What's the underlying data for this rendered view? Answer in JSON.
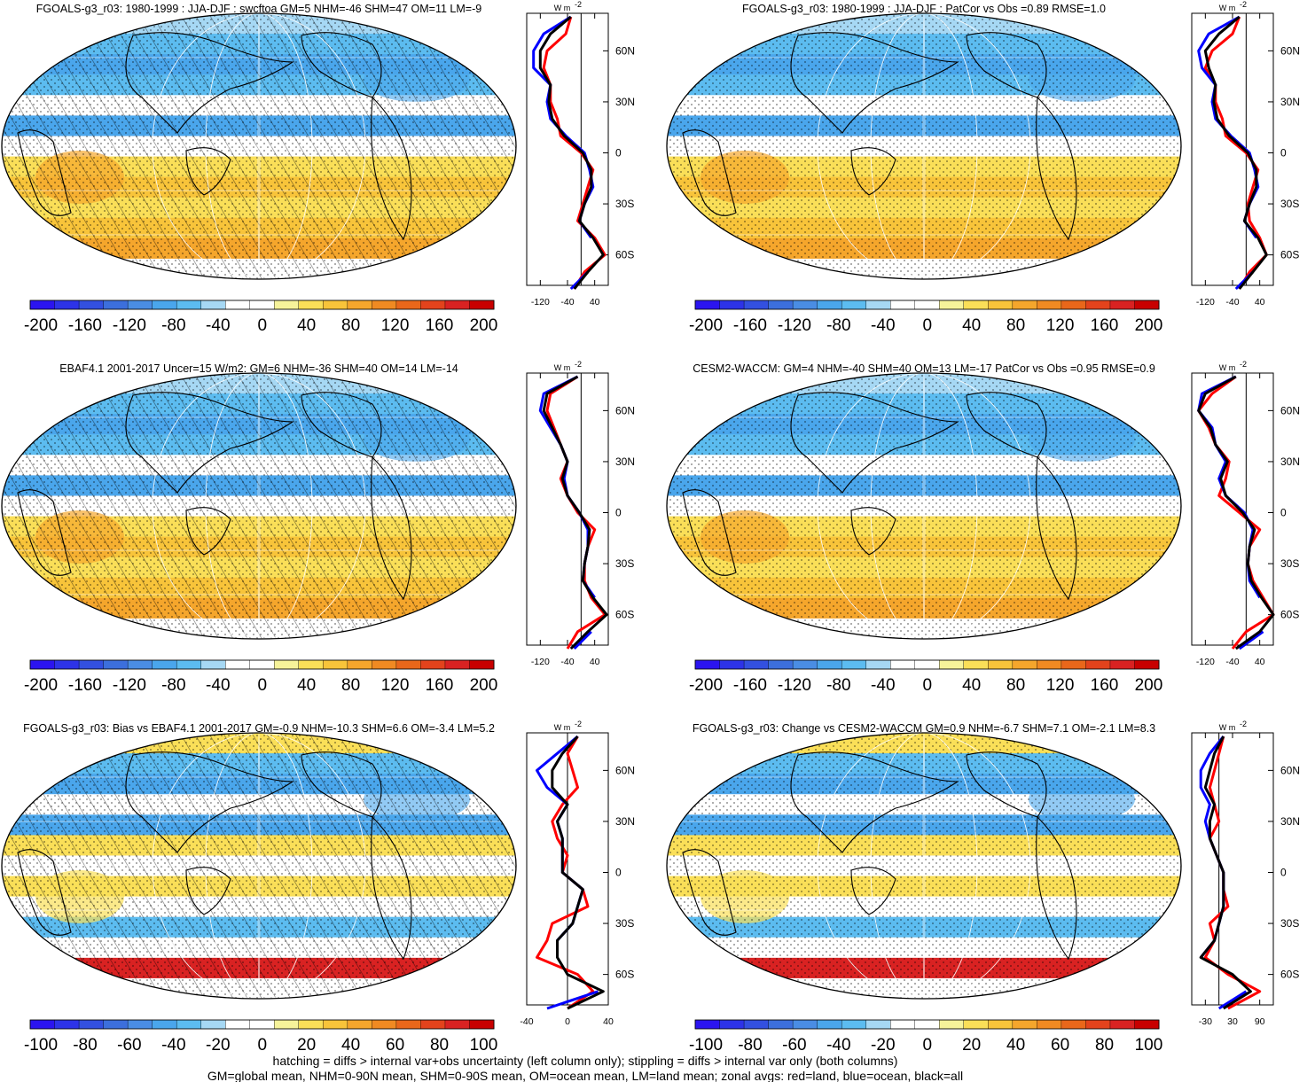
{
  "chart_data": [
    {
      "type": "map",
      "title": "FGOALS-g3_r03: 1980-1999 : JJA-DJF : swcftoa GM=5 NHM=-46 SHM=47 OM=11 LM=-9",
      "hatching": true,
      "colorbar_ticks": [
        "-200",
        "-160",
        "-120",
        "-80",
        "-40",
        "0",
        "40",
        "80",
        "120",
        "160",
        "200"
      ],
      "zonal": {
        "unit": "W m",
        "unit_exp": "-2",
        "xticks": [
          "-120",
          "-40",
          "40"
        ],
        "xmin": -160,
        "xmax": 80,
        "lat": [
          80,
          70,
          60,
          50,
          40,
          30,
          20,
          10,
          0,
          -10,
          -20,
          -30,
          -40,
          -50,
          -60,
          -70,
          -80
        ],
        "series": [
          {
            "name": "red",
            "color": "#ff0000",
            "values": [
              -30,
              -45,
              -100,
              -110,
              -90,
              -90,
              -70,
              -60,
              0,
              35,
              20,
              5,
              -10,
              40,
              70,
              10,
              -20
            ]
          },
          {
            "name": "blue",
            "color": "#0000ff",
            "values": [
              -30,
              -110,
              -140,
              -140,
              -90,
              -100,
              -90,
              -45,
              10,
              25,
              35,
              10,
              -5,
              30,
              null,
              20,
              -30
            ]
          },
          {
            "name": "black",
            "color": "#000000",
            "values": [
              -30,
              -90,
              -120,
              -120,
              -90,
              -95,
              -85,
              -50,
              5,
              30,
              30,
              10,
              -5,
              35,
              65,
              20,
              -20
            ]
          }
        ]
      }
    },
    {
      "type": "map",
      "title": "FGOALS-g3_r03: 1980-1999 : JJA-DJF : PatCor vs Obs =0.89 RMSE=1.0",
      "hatching": false,
      "colorbar_ticks": [
        "-200",
        "-160",
        "-120",
        "-80",
        "-40",
        "0",
        "40",
        "80",
        "120",
        "160",
        "200"
      ],
      "zonal": {
        "unit": "W m",
        "unit_exp": "-2",
        "xticks": [
          "-120",
          "-40",
          "40"
        ],
        "xmin": -160,
        "xmax": 80,
        "lat": [
          80,
          70,
          60,
          50,
          40,
          30,
          20,
          10,
          0,
          -10,
          -20,
          -30,
          -40,
          -50,
          -60,
          -70,
          -80
        ],
        "series": [
          {
            "name": "red",
            "color": "#ff0000",
            "values": [
              -20,
              -40,
              -100,
              -120,
              -90,
              -90,
              -70,
              -60,
              0,
              35,
              20,
              5,
              10,
              40,
              60,
              10,
              -20
            ]
          },
          {
            "name": "blue",
            "color": "#0000ff",
            "values": [
              -20,
              -110,
              -140,
              -130,
              -90,
              -100,
              -90,
              -45,
              10,
              25,
              35,
              10,
              -5,
              30,
              null,
              20,
              -30
            ]
          },
          {
            "name": "black",
            "color": "#000000",
            "values": [
              -20,
              -80,
              -120,
              -110,
              -90,
              -95,
              -85,
              -50,
              5,
              30,
              30,
              10,
              -5,
              35,
              60,
              20,
              -20
            ]
          }
        ]
      }
    },
    {
      "type": "map",
      "title": "EBAF4.1 2001-2017 Uncer=15 W/m2: GM=6 NHM=-36 SHM=40 OM=14 LM=-14",
      "hatching": true,
      "colorbar_ticks": [
        "-200",
        "-160",
        "-120",
        "-80",
        "-40",
        "0",
        "40",
        "80",
        "120",
        "160",
        "200"
      ],
      "zonal": {
        "unit": "W m",
        "unit_exp": "-2",
        "xticks": [
          "-120",
          "-40",
          "40"
        ],
        "xmin": -160,
        "xmax": 80,
        "lat": [
          80,
          70,
          60,
          50,
          40,
          30,
          20,
          10,
          0,
          -10,
          -20,
          -30,
          -40,
          -50,
          -60,
          -70,
          -80
        ],
        "series": [
          {
            "name": "red",
            "color": "#ff0000",
            "values": [
              -10,
              -90,
              -100,
              -80,
              -60,
              -40,
              -60,
              -40,
              -10,
              40,
              20,
              10,
              10,
              30,
              70,
              -10,
              -40
            ]
          },
          {
            "name": "blue",
            "color": "#0000ff",
            "values": [
              -10,
              -110,
              -120,
              -90,
              -60,
              -40,
              -50,
              -40,
              -5,
              20,
              20,
              10,
              5,
              40,
              null,
              30,
              -20
            ]
          },
          {
            "name": "black",
            "color": "#000000",
            "values": [
              -10,
              -100,
              -110,
              -85,
              -60,
              -40,
              -55,
              -40,
              -5,
              25,
              20,
              10,
              5,
              35,
              75,
              20,
              -30
            ]
          }
        ]
      }
    },
    {
      "type": "map",
      "title": "CESM2-WACCM: GM=4 NHM=-40 SHM=40 OM=13 LM=-17 PatCor vs Obs =0.95 RMSE=0.9",
      "hatching": false,
      "colorbar_ticks": [
        "-200",
        "-160",
        "-120",
        "-80",
        "-40",
        "0",
        "40",
        "80",
        "120",
        "160",
        "200"
      ],
      "zonal": {
        "unit": "W m",
        "unit_exp": "-2",
        "xticks": [
          "-120",
          "-40",
          "40"
        ],
        "xmin": -160,
        "xmax": 80,
        "lat": [
          80,
          70,
          60,
          50,
          40,
          30,
          20,
          10,
          0,
          -10,
          -20,
          -30,
          -40,
          -50,
          -60,
          -70,
          -80
        ],
        "series": [
          {
            "name": "red",
            "color": "#ff0000",
            "values": [
              -30,
              -100,
              -140,
              -110,
              -90,
              -50,
              -60,
              -80,
              -20,
              40,
              10,
              5,
              20,
              50,
              90,
              0,
              -40
            ]
          },
          {
            "name": "blue",
            "color": "#0000ff",
            "values": [
              -30,
              -130,
              -140,
              -100,
              -90,
              -60,
              -80,
              -60,
              -5,
              20,
              10,
              5,
              10,
              40,
              null,
              50,
              -20
            ]
          },
          {
            "name": "black",
            "color": "#000000",
            "values": [
              -30,
              -120,
              -140,
              -105,
              -90,
              -55,
              -75,
              -60,
              -10,
              25,
              10,
              5,
              15,
              45,
              85,
              40,
              -30
            ]
          }
        ]
      }
    },
    {
      "type": "map",
      "title": "FGOALS-g3_r03: Bias vs EBAF4.1 2001-2017 GM=-0.9 NHM=-10.3 SHM=6.6 OM=-3.4 LM=5.2",
      "hatching": true,
      "colorbar_ticks": [
        "-100",
        "-80",
        "-60",
        "-40",
        "-20",
        "0",
        "20",
        "40",
        "60",
        "80",
        "100"
      ],
      "zonal": {
        "unit": "W m",
        "unit_exp": "-2",
        "xticks": [
          "-40",
          "0",
          "40"
        ],
        "xmin": -40,
        "xmax": 40,
        "lat": [
          80,
          70,
          60,
          50,
          40,
          30,
          20,
          10,
          0,
          -10,
          -20,
          -30,
          -40,
          -50,
          -60,
          -70,
          -80
        ],
        "series": [
          {
            "name": "red",
            "color": "#ff0000",
            "values": [
              10,
              0,
              5,
              10,
              -5,
              -15,
              -10,
              0,
              -5,
              15,
              20,
              -15,
              -20,
              -30,
              10,
              25,
              0
            ]
          },
          {
            "name": "blue",
            "color": "#0000ff",
            "values": [
              10,
              -10,
              -30,
              -20,
              0,
              -10,
              -5,
              -5,
              -5,
              15,
              10,
              5,
              -10,
              -10,
              null,
              30,
              -20
            ]
          },
          {
            "name": "black",
            "color": "#000000",
            "values": [
              10,
              -5,
              -15,
              -15,
              0,
              -10,
              -5,
              -5,
              -5,
              15,
              10,
              5,
              -10,
              -10,
              0,
              35,
              0
            ]
          }
        ]
      }
    },
    {
      "type": "map",
      "title": "FGOALS-g3_r03: Change vs CESM2-WACCM GM=0.9 NHM=-6.7 SHM=7.1 OM=-2.1 LM=8.3",
      "hatching": false,
      "colorbar_ticks": [
        "-100",
        "-80",
        "-60",
        "-40",
        "-20",
        "0",
        "20",
        "40",
        "60",
        "80",
        "100"
      ],
      "zonal": {
        "unit": "W m",
        "unit_exp": "-2",
        "xticks": [
          "-30",
          "30",
          "90"
        ],
        "xmin": -60,
        "xmax": 120,
        "lat": [
          80,
          70,
          60,
          50,
          40,
          30,
          20,
          10,
          0,
          -10,
          -20,
          -30,
          -40,
          -50,
          -60,
          -70,
          -80
        ],
        "series": [
          {
            "name": "red",
            "color": "#ff0000",
            "values": [
              10,
              0,
              -10,
              -20,
              -10,
              0,
              -20,
              -5,
              10,
              10,
              20,
              -20,
              -10,
              -30,
              20,
              90,
              20
            ]
          },
          {
            "name": "blue",
            "color": "#0000ff",
            "values": [
              10,
              -20,
              -40,
              -40,
              -20,
              -30,
              -20,
              -5,
              10,
              10,
              10,
              0,
              -10,
              -40,
              null,
              60,
              0
            ]
          },
          {
            "name": "black",
            "color": "#000000",
            "values": [
              10,
              -10,
              -20,
              -30,
              -10,
              -20,
              -20,
              -5,
              10,
              10,
              10,
              0,
              -10,
              -40,
              30,
              70,
              10
            ]
          }
        ]
      }
    }
  ],
  "zonal_lat_labels": [
    "60N",
    "30N",
    "0",
    "30S",
    "60S"
  ],
  "colorbar_colors": [
    "#2b14f0",
    "#2d33e8",
    "#3350e0",
    "#3c6fdc",
    "#4a8de4",
    "#4aa6ec",
    "#5cbcf0",
    "#a6d8f4",
    "#ffffff",
    "#ffffff",
    "#f6f39a",
    "#fadf58",
    "#f8c43a",
    "#f5a62c",
    "#f08a22",
    "#e9671a",
    "#e3431c",
    "#d92222",
    "#c80000"
  ],
  "footnote": {
    "line1": "hatching = diffs > internal var+obs uncertainty (left column only); stippling = diffs > internal var only (both columns)",
    "line2": "GM=global mean, NHM=0-90N mean, SHM=0-90S mean, OM=ocean mean, LM=land mean; zonal avgs: red=land, blue=ocean, black=all"
  }
}
